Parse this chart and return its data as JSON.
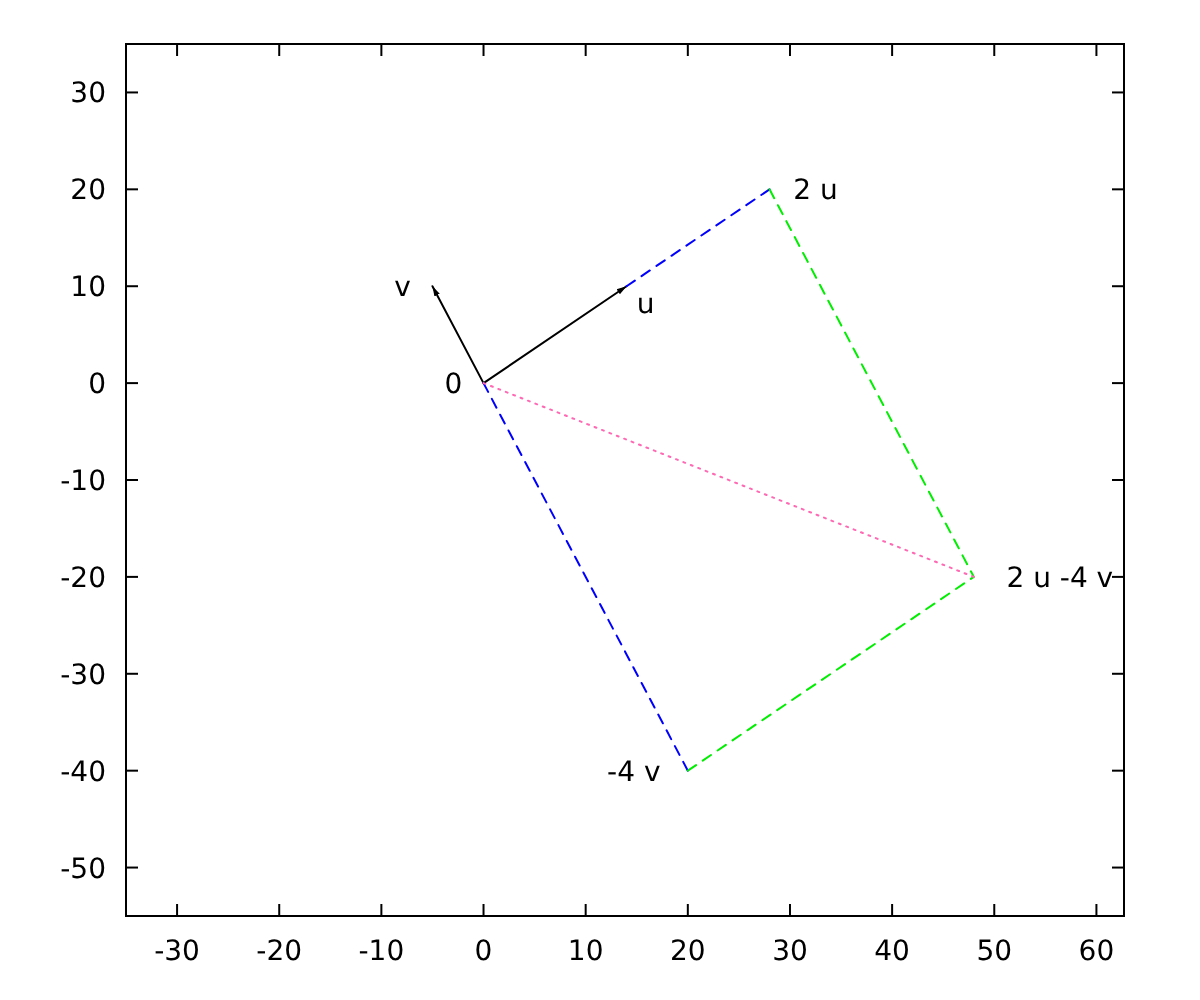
{
  "chart_data": {
    "type": "line",
    "xlim": [
      -35,
      62.7
    ],
    "ylim": [
      -55,
      35
    ],
    "xticks": [
      -30,
      -20,
      -10,
      0,
      10,
      20,
      30,
      40,
      50,
      60
    ],
    "yticks": [
      -50,
      -40,
      -30,
      -20,
      -10,
      0,
      10,
      20,
      30
    ],
    "grid": false,
    "series": [
      {
        "color": "#000000",
        "x": [
          0,
          14
        ],
        "values": [
          0,
          10
        ],
        "line_style": "solid"
      },
      {
        "color": "#000000",
        "x": [
          0,
          -5
        ],
        "values": [
          0,
          10
        ],
        "line_style": "solid"
      },
      {
        "color": "#0000ff",
        "x": [
          14,
          28
        ],
        "values": [
          10,
          20
        ],
        "line_style": "dashed"
      },
      {
        "color": "#0000ff",
        "x": [
          0,
          20
        ],
        "values": [
          0,
          -40
        ],
        "line_style": "dashed"
      },
      {
        "color": "#00ee00",
        "x": [
          28,
          48,
          20
        ],
        "values": [
          20,
          -20,
          -40
        ],
        "line_style": "dashed"
      },
      {
        "color": "#ff69b4",
        "x": [
          0,
          48
        ],
        "values": [
          0,
          -20
        ],
        "line_style": "dotted"
      }
    ],
    "annotations": [
      {
        "text": "u",
        "x": 14,
        "y": 10
      },
      {
        "text": "v",
        "x": -5,
        "y": 10
      },
      {
        "text": "0",
        "x": 0,
        "y": 0
      },
      {
        "text": "2 u",
        "x": 28,
        "y": 20
      },
      {
        "text": "-4 v",
        "x": 20,
        "y": -40
      },
      {
        "text": "2 u -4 v",
        "x": 48,
        "y": -20
      }
    ]
  }
}
